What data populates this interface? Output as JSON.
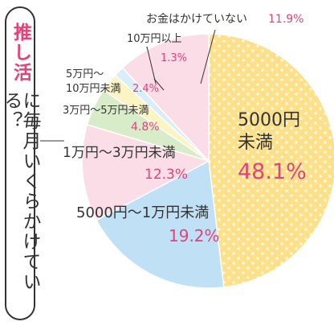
{
  "question": {
    "emphasis": "推し活",
    "rest": "に毎月いくらかけている？"
  },
  "chart_data": {
    "type": "pie",
    "title": "",
    "slices": [
      {
        "label": "5000円未満",
        "value": 48.1,
        "display": "48.1%",
        "color": "#fde08a"
      },
      {
        "label": "5000円〜1万円未満",
        "value": 19.2,
        "display": "19.2%",
        "color": "#bfe0f5"
      },
      {
        "label": "1万円〜3万円未満",
        "value": 12.3,
        "display": "12.3%",
        "color": "#fbdde7"
      },
      {
        "label": "3万円〜5万円未満",
        "value": 4.8,
        "display": "4.8%",
        "color": "#d9ecc9"
      },
      {
        "label": "5万円〜10万円未満",
        "value": 2.4,
        "display": "2.4%",
        "color": "#fbf5c4"
      },
      {
        "label": "10万円以上",
        "value": 1.3,
        "display": "1.3%",
        "color": "#d9eef7"
      },
      {
        "label": "お金はかけていない",
        "value": 11.9,
        "display": "11.9%",
        "color": "#fbdde7"
      }
    ]
  }
}
